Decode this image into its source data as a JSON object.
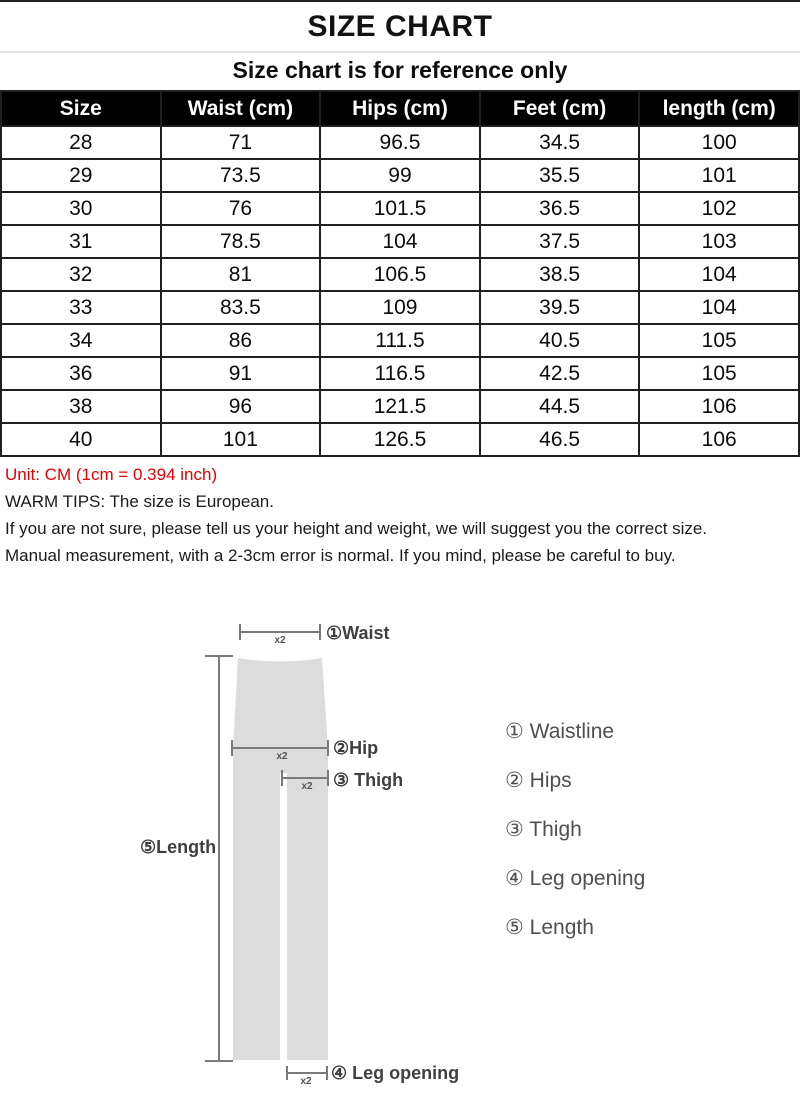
{
  "page": {
    "title": "SIZE CHART",
    "subtitle": "Size chart is for reference only"
  },
  "table": {
    "headers": [
      "Size",
      "Waist (cm)",
      "Hips (cm)",
      "Feet (cm)",
      "length (cm)"
    ],
    "rows": [
      [
        "28",
        "71",
        "96.5",
        "34.5",
        "100"
      ],
      [
        "29",
        "73.5",
        "99",
        "35.5",
        "101"
      ],
      [
        "30",
        "76",
        "101.5",
        "36.5",
        "102"
      ],
      [
        "31",
        "78.5",
        "104",
        "37.5",
        "103"
      ],
      [
        "32",
        "81",
        "106.5",
        "38.5",
        "104"
      ],
      [
        "33",
        "83.5",
        "109",
        "39.5",
        "104"
      ],
      [
        "34",
        "86",
        "111.5",
        "40.5",
        "105"
      ],
      [
        "36",
        "91",
        "116.5",
        "42.5",
        "105"
      ],
      [
        "38",
        "96",
        "121.5",
        "44.5",
        "106"
      ],
      [
        "40",
        "101",
        "126.5",
        "46.5",
        "106"
      ]
    ]
  },
  "notes": {
    "unit": "Unit: CM (1cm = 0.394 inch)",
    "warm_tips": "WARM TIPS: The size is European.",
    "line2": "If you are not sure, please tell us your height and weight, we will suggest you the correct size.",
    "line3": "Manual measurement, with a 2-3cm error is normal. If you mind, please be careful to buy."
  },
  "diagram": {
    "x2_label": "x2",
    "labels": {
      "waist": "①Waist",
      "hip": "②Hip",
      "thigh": "③ Thigh",
      "leg_opening": "④ Leg opening",
      "length": "⑤Length"
    },
    "legend": [
      "① Waistline",
      "② Hips",
      "③ Thigh",
      "④ Leg opening",
      "⑤ Length"
    ]
  },
  "colors": {
    "unit_note": "#e60000",
    "header_bg": "#000000",
    "header_text": "#ffffff",
    "border": "#1f1f1f",
    "pants_fill": "#dcdcdc",
    "line": "#7a7a7a",
    "label_text": "#3f3f3f"
  }
}
